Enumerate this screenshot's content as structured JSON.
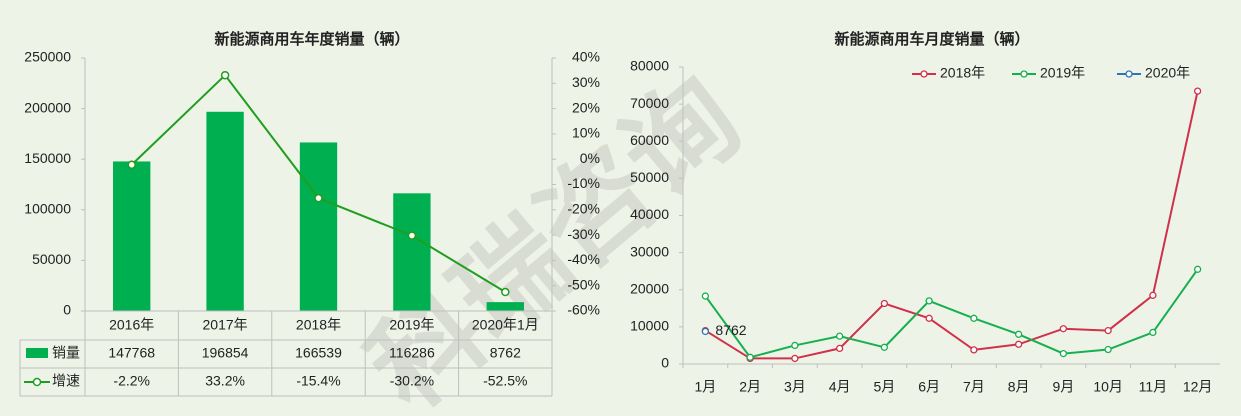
{
  "watermark": "科瑞咨询",
  "chart_data": [
    {
      "type": "bar_line",
      "title": "新能源商用车年度销量（辆）",
      "categories": [
        "2016年",
        "2017年",
        "2018年",
        "2019年",
        "2020年1月"
      ],
      "series": [
        {
          "name": "销量",
          "color": "#00b050",
          "values": [
            147768,
            196854,
            166539,
            116286,
            8762
          ]
        },
        {
          "name": "增速",
          "color": "#1f9e1f",
          "axis": "y2",
          "values": [
            -2.2,
            33.2,
            -15.4,
            -30.2,
            -52.5
          ],
          "value_labels": [
            "-2.2%",
            "33.2%",
            "-15.4%",
            "-30.2%",
            "-52.5%"
          ]
        }
      ],
      "ylim": [
        0,
        250000
      ],
      "yticks": [
        0,
        50000,
        100000,
        150000,
        200000,
        250000
      ],
      "y2lim": [
        -60,
        40
      ],
      "y2ticks": [
        {
          "value": -60,
          "label": "-60%"
        },
        {
          "value": -50,
          "label": "-50%"
        },
        {
          "value": -40,
          "label": "-40%"
        },
        {
          "value": -30,
          "label": "-30%"
        },
        {
          "value": -20,
          "label": "-20%"
        },
        {
          "value": -10,
          "label": "-10%"
        },
        {
          "value": 0,
          "label": "0%"
        },
        {
          "value": 10,
          "label": "10%"
        },
        {
          "value": 20,
          "label": "20%"
        },
        {
          "value": 30,
          "label": "30%"
        },
        {
          "value": 40,
          "label": "40%"
        }
      ]
    },
    {
      "type": "line",
      "title": "新能源商用车月度销量（辆）",
      "categories": [
        "1月",
        "2月",
        "3月",
        "4月",
        "5月",
        "6月",
        "7月",
        "8月",
        "9月",
        "10月",
        "11月",
        "12月"
      ],
      "series": [
        {
          "name": "2018年",
          "color": "#d0304a",
          "values": [
            9000,
            1500,
            1500,
            4200,
            16300,
            12300,
            3800,
            5300,
            9500,
            9000,
            18500,
            73500
          ]
        },
        {
          "name": "2019年",
          "color": "#16b04e",
          "values": [
            18300,
            1800,
            5000,
            7500,
            4500,
            17000,
            12300,
            8000,
            2800,
            3900,
            8500,
            25500
          ]
        },
        {
          "name": "2020年",
          "color": "#2e75b6",
          "values": [
            8762,
            null,
            null,
            null,
            null,
            null,
            null,
            null,
            null,
            null,
            null,
            null
          ]
        }
      ],
      "ylim": [
        0,
        80000
      ],
      "yticks": [
        0,
        10000,
        20000,
        30000,
        40000,
        50000,
        60000,
        70000,
        80000
      ],
      "legend": "top-right"
    }
  ]
}
